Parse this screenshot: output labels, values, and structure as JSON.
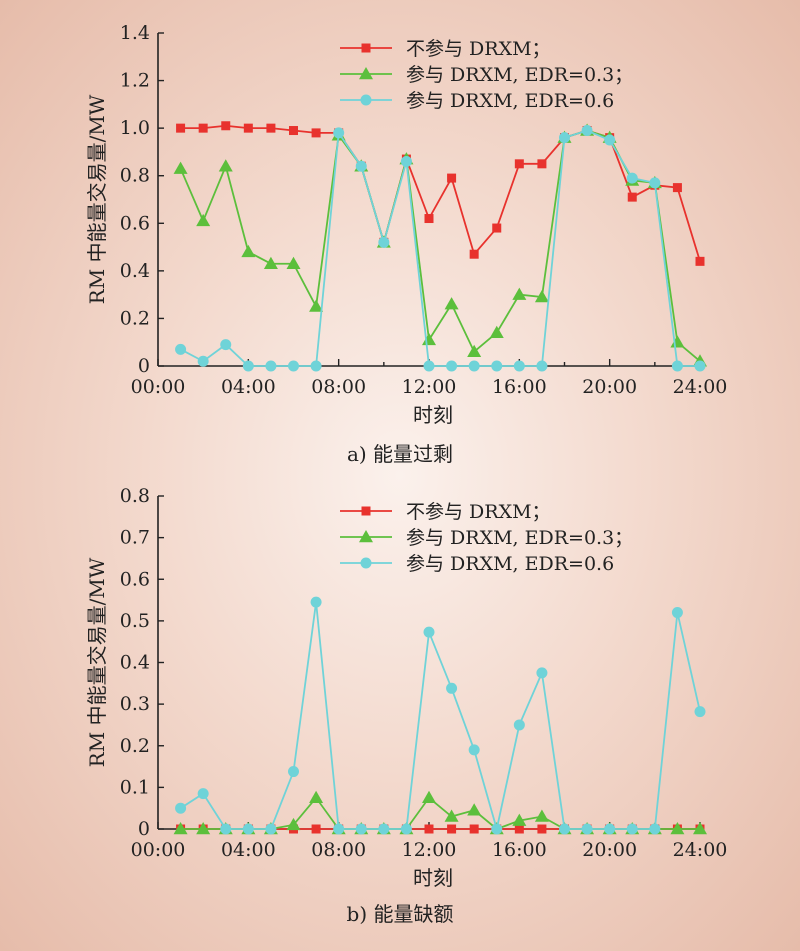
{
  "chart_data": [
    {
      "type": "line",
      "caption": "a) 能量过剩",
      "xlabel": "时刻",
      "ylabel": "RM 中能量交易量/MW",
      "xticks": [
        "00:00",
        "04:00",
        "08:00",
        "12:00",
        "16:00",
        "20:00",
        "24:00"
      ],
      "yticks": [
        "0",
        "0.2",
        "0.4",
        "0.6",
        "0.8",
        "1.0",
        "1.2",
        "1.4"
      ],
      "xlim": [
        0,
        24
      ],
      "ylim": [
        0,
        1.4
      ],
      "x": [
        1,
        2,
        3,
        4,
        5,
        6,
        7,
        8,
        9,
        10,
        11,
        12,
        13,
        14,
        15,
        16,
        17,
        18,
        19,
        20,
        21,
        22,
        23,
        24
      ],
      "series": [
        {
          "name": "不参与 DRXM；",
          "color": "#e8322d",
          "marker": "square",
          "values": [
            1.0,
            1.0,
            1.01,
            1.0,
            1.0,
            0.99,
            0.98,
            0.98,
            0.84,
            0.52,
            0.87,
            0.62,
            0.79,
            0.47,
            0.58,
            0.85,
            0.85,
            0.96,
            0.99,
            0.96,
            0.71,
            0.76,
            0.75,
            0.44
          ]
        },
        {
          "name": "参与 DRXM, EDR=0.3；",
          "color": "#5cbf3c",
          "marker": "triangle",
          "values": [
            0.83,
            0.61,
            0.84,
            0.48,
            0.43,
            0.43,
            0.25,
            0.97,
            0.84,
            0.52,
            0.87,
            0.11,
            0.26,
            0.06,
            0.14,
            0.3,
            0.29,
            0.96,
            0.99,
            0.96,
            0.78,
            0.77,
            0.1,
            0.02
          ]
        },
        {
          "name": "参与 DRXM, EDR=0.6",
          "color": "#6fd3d8",
          "marker": "circle",
          "values": [
            0.07,
            0.02,
            0.09,
            0.0,
            0.0,
            0.0,
            0.0,
            0.98,
            0.84,
            0.52,
            0.86,
            0.0,
            0.0,
            0.0,
            0.0,
            0.0,
            0.0,
            0.96,
            0.99,
            0.95,
            0.79,
            0.77,
            0.0,
            0.0
          ]
        }
      ]
    },
    {
      "type": "line",
      "caption": "b) 能量缺额",
      "xlabel": "时刻",
      "ylabel": "RM 中能量交易量/MW",
      "xticks": [
        "00:00",
        "04:00",
        "08:00",
        "12:00",
        "16:00",
        "20:00",
        "24:00"
      ],
      "yticks": [
        "0",
        "0.1",
        "0.2",
        "0.3",
        "0.4",
        "0.5",
        "0.6",
        "0.7",
        "0.8"
      ],
      "xlim": [
        0,
        24
      ],
      "ylim": [
        0,
        0.8
      ],
      "x": [
        1,
        2,
        3,
        4,
        5,
        6,
        7,
        8,
        9,
        10,
        11,
        12,
        13,
        14,
        15,
        16,
        17,
        18,
        19,
        20,
        21,
        22,
        23,
        24
      ],
      "series": [
        {
          "name": "不参与 DRXM；",
          "color": "#e8322d",
          "marker": "square",
          "values": [
            0,
            0,
            0,
            0,
            0,
            0,
            0,
            0,
            0,
            0,
            0,
            0,
            0,
            0,
            0,
            0,
            0,
            0,
            0,
            0,
            0,
            0,
            0,
            0
          ]
        },
        {
          "name": "参与 DRXM, EDR=0.3；",
          "color": "#5cbf3c",
          "marker": "triangle",
          "values": [
            0,
            0,
            0,
            0,
            0,
            0.01,
            0.075,
            0,
            0,
            0,
            0,
            0.075,
            0.03,
            0.045,
            0,
            0.02,
            0.03,
            0,
            0,
            0,
            0,
            0,
            0,
            0
          ]
        },
        {
          "name": "参与 DRXM, EDR=0.6",
          "color": "#6fd3d8",
          "marker": "circle",
          "values": [
            0.05,
            0.085,
            0,
            0,
            0,
            0.138,
            0.545,
            0,
            0,
            0,
            0,
            0.473,
            0.338,
            0.19,
            0,
            0.25,
            0.375,
            0,
            0,
            0,
            0,
            0,
            0.52,
            0.282
          ]
        }
      ]
    }
  ]
}
